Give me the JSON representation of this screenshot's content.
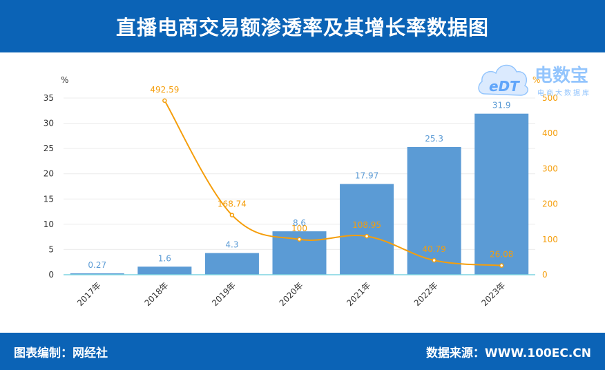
{
  "header": {
    "title": "直播电商交易额渗透率及其增长率数据图"
  },
  "footer": {
    "left": "图表编制：网经社",
    "right": "数据来源：WWW.100EC.CN"
  },
  "logo": {
    "brand": "电数宝",
    "subtitle": "电商大数据库",
    "mark": "eDT"
  },
  "colors": {
    "header_bg": "#0b63b6",
    "bar": "#5b9bd5",
    "line": "#f59e0b",
    "bar_label": "#5b9bd5",
    "line_label": "#f59e0b",
    "axis_line": "#7dd3e0"
  },
  "chart_data": {
    "type": "bar",
    "categories": [
      "2017年",
      "2018年",
      "2019年",
      "2020年",
      "2021年",
      "2022年",
      "2023年"
    ],
    "series": [
      {
        "type": "bar",
        "axis": "left",
        "values": [
          0.27,
          1.6,
          4.3,
          8.6,
          17.97,
          25.3,
          31.9
        ],
        "labels": [
          "0.27",
          "1.6",
          "4.3",
          "8.6",
          "17.97",
          "25.3",
          "31.9"
        ]
      },
      {
        "type": "line",
        "axis": "right",
        "values": [
          null,
          492.59,
          168.74,
          100,
          108.95,
          40.79,
          26.08
        ],
        "labels": [
          "",
          "492.59",
          "168.74",
          "100",
          "108.95",
          "40.79",
          "26.08"
        ]
      }
    ],
    "y_left": {
      "unit": "%",
      "ylim": [
        0,
        35
      ],
      "ticks": [
        "0",
        "5",
        "10",
        "15",
        "20",
        "25",
        "30",
        "35"
      ]
    },
    "y_right": {
      "unit": "%",
      "ylim": [
        0,
        500
      ],
      "ticks": [
        "0",
        "100",
        "200",
        "300",
        "400",
        "500"
      ]
    },
    "grid": true,
    "legend": "none"
  }
}
